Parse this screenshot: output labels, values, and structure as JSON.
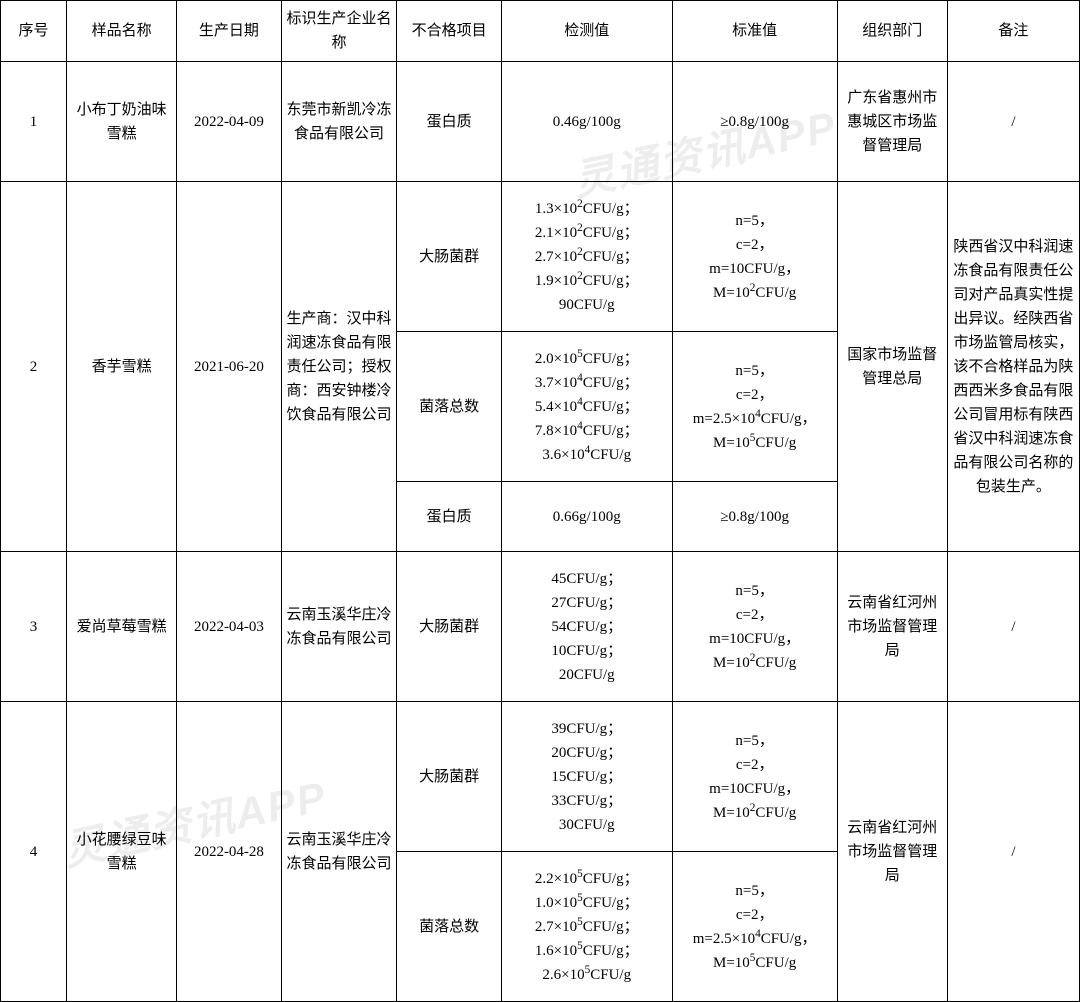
{
  "watermark_text": "灵通资讯APP",
  "headers": {
    "seq": "序号",
    "name": "样品名称",
    "date": "生产日期",
    "mfr": "标识生产企业名称",
    "item": "不合格项目",
    "detect": "检测值",
    "std": "标准值",
    "dept": "组织部门",
    "note": "备注"
  },
  "row1": {
    "seq": "1",
    "name": "小布丁奶油味雪糕",
    "date": "2022-04-09",
    "mfr": "东莞市新凯冷冻食品有限公司",
    "item": "蛋白质",
    "detect": "0.46g/100g",
    "std": "≥0.8g/100g",
    "dept": "广东省惠州市惠城区市场监督管理局",
    "note": "/"
  },
  "row2": {
    "seq": "2",
    "name": "香芋雪糕",
    "date": "2021-06-20",
    "mfr": "生产商：汉中科润速冻食品有限责任公司；授权商：西安钟楼冷饮食品有限公司",
    "sub1": {
      "item": "大肠菌群",
      "detect": "1.3×10²CFU/g；2.1×10²CFU/g；2.7×10²CFU/g；1.9×10²CFU/g；90CFU/g",
      "std": "n=5，c=2，m=10CFU/g，M=10²CFU/g"
    },
    "sub2": {
      "item": "菌落总数",
      "detect": "2.0×10⁵CFU/g；3.7×10⁴CFU/g；5.4×10⁴CFU/g；7.8×10⁴CFU/g；3.6×10⁴CFU/g",
      "std": "n=5，c=2，m=2.5×10⁴CFU/g，M=10⁵CFU/g"
    },
    "sub3": {
      "item": "蛋白质",
      "detect": "0.66g/100g",
      "std": "≥0.8g/100g"
    },
    "dept": "国家市场监督管理总局",
    "note": "陕西省汉中科润速冻食品有限责任公司对产品真实性提出异议。经陕西省市场监管局核实，该不合格样品为陕西西米多食品有限公司冒用标有陕西省汉中科润速冻食品有限公司名称的包装生产。"
  },
  "row3": {
    "seq": "3",
    "name": "爱尚草莓雪糕",
    "date": "2022-04-03",
    "mfr": "云南玉溪华庄冷冻食品有限公司",
    "item": "大肠菌群",
    "detect": "45CFU/g；27CFU/g；54CFU/g；10CFU/g；20CFU/g",
    "std": "n=5，c=2，m=10CFU/g，M=10²CFU/g",
    "dept": "云南省红河州市场监督管理局",
    "note": "/"
  },
  "row4": {
    "seq": "4",
    "name": "小花腰绿豆味雪糕",
    "date": "2022-04-28",
    "mfr": "云南玉溪华庄冷冻食品有限公司",
    "sub1": {
      "item": "大肠菌群",
      "detect": "39CFU/g；20CFU/g；15CFU/g；33CFU/g；30CFU/g",
      "std": "n=5，c=2，m=10CFU/g，M=10²CFU/g"
    },
    "sub2": {
      "item": "菌落总数",
      "detect": "2.2×10⁵CFU/g；1.0×10⁵CFU/g；2.7×10⁵CFU/g；1.6×10⁵CFU/g；2.6×10⁵CFU/g",
      "std": "n=5，c=2，m=2.5×10⁴CFU/g，M=10⁵CFU/g"
    },
    "dept": "云南省红河州市场监督管理局",
    "note": "/"
  },
  "styling": {
    "table_border_color": "#000000",
    "background_color": "#ffffff",
    "text_color": "#000000",
    "font_size": 15,
    "font_family": "SimSun",
    "cell_padding": 6,
    "line_height": 1.6,
    "watermark_color": "rgba(0,0,0,0.07)",
    "watermark_rotation": -12,
    "watermark_font_size": 42,
    "column_widths": {
      "seq": 60,
      "name": 100,
      "date": 95,
      "mfr": 105,
      "item": 95,
      "detect": 155,
      "std": 150,
      "dept": 100,
      "note": 120
    }
  }
}
